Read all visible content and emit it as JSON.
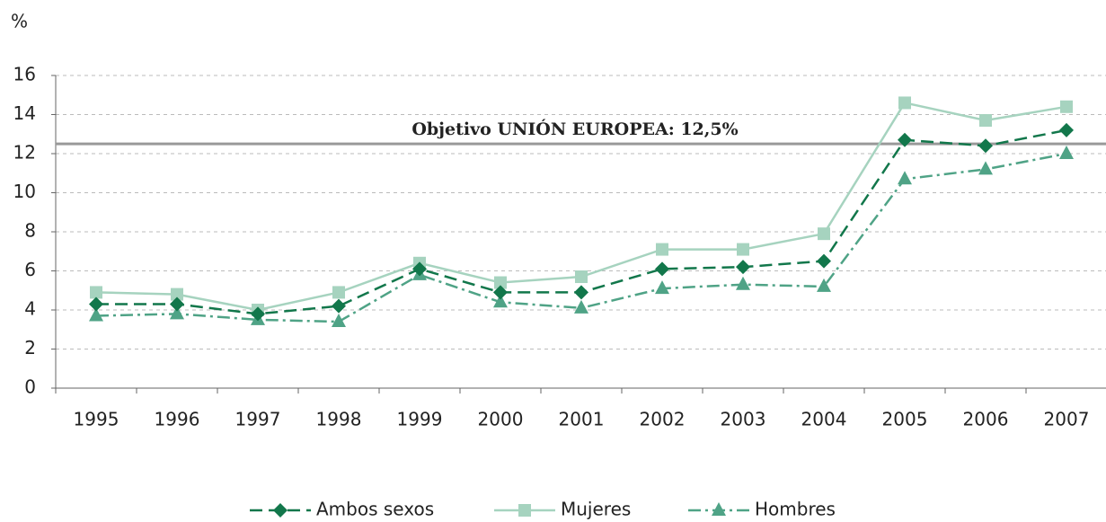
{
  "chart_data": {
    "type": "line",
    "ylabel": "%",
    "categories": [
      "1995",
      "1996",
      "1997",
      "1998",
      "1999",
      "2000",
      "2001",
      "2002",
      "2003",
      "2004",
      "2005",
      "2006",
      "2007"
    ],
    "series": [
      {
        "name": "Ambos sexos",
        "color": "#12774b",
        "linestyle": "dashed",
        "marker": "diamond",
        "values": [
          4.3,
          4.3,
          3.8,
          4.2,
          6.1,
          4.9,
          4.9,
          6.1,
          6.2,
          6.5,
          12.7,
          12.4,
          13.2
        ]
      },
      {
        "name": "Mujeres",
        "color": "#a6d3bf",
        "linestyle": "solid",
        "marker": "square",
        "values": [
          4.9,
          4.8,
          4.0,
          4.9,
          6.4,
          5.4,
          5.7,
          7.1,
          7.1,
          7.9,
          14.6,
          13.7,
          14.4
        ]
      },
      {
        "name": "Hombres",
        "color": "#4fa386",
        "linestyle": "dashdot",
        "marker": "triangle",
        "values": [
          3.7,
          3.8,
          3.5,
          3.4,
          5.8,
          4.4,
          4.1,
          5.1,
          5.3,
          5.2,
          10.7,
          11.2,
          12.0
        ]
      }
    ],
    "reference_line": {
      "value": 12.5,
      "label": "Objetivo UNIÓN EUROPEA: 12,5%",
      "color": "#999999"
    },
    "ylim": [
      0,
      16
    ],
    "yticks": [
      0,
      2,
      4,
      6,
      8,
      10,
      12,
      14,
      16
    ],
    "grid": true,
    "legend": "bottom"
  }
}
